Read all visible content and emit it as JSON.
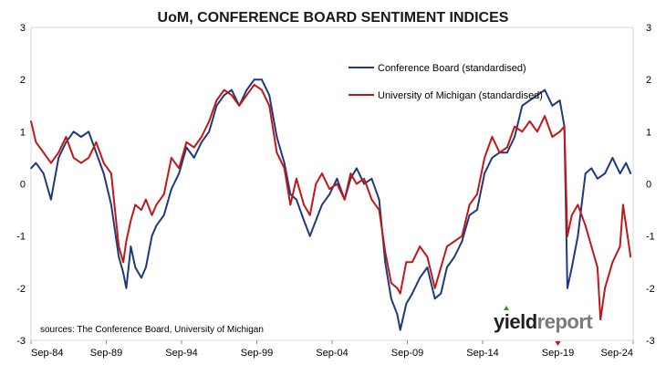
{
  "chart_data": {
    "type": "line",
    "title": "UoM, CONFERENCE BOARD SENTIMENT INDICES",
    "xlabel": "",
    "ylabel": "",
    "x_ticks": [
      "Sep-84",
      "Sep-89",
      "Sep-94",
      "Sep-99",
      "Sep-04",
      "Sep-09",
      "Sep-14",
      "Sep-19",
      "Sep-24"
    ],
    "xlim": [
      1984.67,
      2024.67
    ],
    "ylim": [
      -3,
      3
    ],
    "y_ticks": [
      3,
      2,
      1,
      0,
      -1,
      -2,
      -3
    ],
    "grid": false,
    "legend_position": "top-right",
    "series": [
      {
        "name": "Conference Board (standardised)",
        "color": "#1f3a7a",
        "x": [
          1984.67,
          1985.0,
          1985.5,
          1986.0,
          1986.5,
          1987.0,
          1987.5,
          1988.0,
          1988.5,
          1989.0,
          1989.5,
          1990.0,
          1990.5,
          1990.8,
          1991.0,
          1991.3,
          1991.6,
          1992.0,
          1992.3,
          1992.7,
          1993.0,
          1993.5,
          1994.0,
          1994.5,
          1995.0,
          1995.5,
          1996.0,
          1996.5,
          1997.0,
          1997.5,
          1998.0,
          1998.5,
          1999.0,
          1999.5,
          2000.0,
          2000.5,
          2001.0,
          2001.5,
          2001.9,
          2002.3,
          2002.8,
          2003.2,
          2003.6,
          2004.0,
          2004.5,
          2005.0,
          2005.5,
          2005.9,
          2006.3,
          2006.8,
          2007.3,
          2007.8,
          2008.2,
          2008.6,
          2009.0,
          2009.2,
          2009.6,
          2010.0,
          2010.5,
          2011.0,
          2011.5,
          2011.9,
          2012.3,
          2012.8,
          2013.3,
          2013.8,
          2014.3,
          2014.8,
          2015.3,
          2015.8,
          2016.3,
          2016.8,
          2017.3,
          2017.8,
          2018.3,
          2018.8,
          2019.3,
          2019.8,
          2020.1,
          2020.3,
          2020.6,
          2021.0,
          2021.5,
          2021.9,
          2022.3,
          2022.8,
          2023.3,
          2023.8,
          2024.2,
          2024.5
        ],
        "values": [
          0.3,
          0.4,
          0.2,
          -0.3,
          0.5,
          0.8,
          1.0,
          0.9,
          1.0,
          0.6,
          0.2,
          -0.4,
          -1.4,
          -1.7,
          -2.0,
          -1.2,
          -1.6,
          -1.8,
          -1.6,
          -1.0,
          -0.8,
          -0.6,
          -0.1,
          0.2,
          0.7,
          0.5,
          0.8,
          1.0,
          1.5,
          1.7,
          1.8,
          1.5,
          1.8,
          2.0,
          2.0,
          1.7,
          0.9,
          0.4,
          -0.2,
          -0.3,
          -0.7,
          -1.0,
          -0.7,
          -0.4,
          -0.2,
          0.1,
          -0.3,
          0.1,
          0.3,
          0.0,
          0.1,
          -0.3,
          -1.5,
          -2.2,
          -2.5,
          -2.8,
          -2.3,
          -2.1,
          -1.8,
          -1.6,
          -2.2,
          -2.1,
          -1.6,
          -1.4,
          -1.1,
          -0.6,
          -0.5,
          0.2,
          0.5,
          0.6,
          0.6,
          0.9,
          1.5,
          1.6,
          1.7,
          1.8,
          1.5,
          1.6,
          1.1,
          -2.0,
          -1.6,
          -1.0,
          0.2,
          0.3,
          0.1,
          0.2,
          0.5,
          0.2,
          0.4,
          0.2
        ]
      },
      {
        "name": "University of Michigan (standardised)",
        "color": "#c01818",
        "x": [
          1984.67,
          1985.0,
          1985.5,
          1986.0,
          1986.5,
          1987.0,
          1987.5,
          1988.0,
          1988.5,
          1989.0,
          1989.5,
          1990.0,
          1990.5,
          1990.8,
          1991.0,
          1991.3,
          1991.6,
          1992.0,
          1992.3,
          1992.7,
          1993.0,
          1993.5,
          1994.0,
          1994.5,
          1995.0,
          1995.5,
          1996.0,
          1996.5,
          1997.0,
          1997.5,
          1998.0,
          1998.5,
          1999.0,
          1999.5,
          2000.0,
          2000.5,
          2001.0,
          2001.5,
          2001.9,
          2002.3,
          2002.8,
          2003.2,
          2003.6,
          2004.0,
          2004.5,
          2005.0,
          2005.5,
          2005.9,
          2006.3,
          2006.8,
          2007.3,
          2007.8,
          2008.2,
          2008.6,
          2009.0,
          2009.2,
          2009.6,
          2010.0,
          2010.5,
          2011.0,
          2011.5,
          2011.9,
          2012.3,
          2012.8,
          2013.3,
          2013.8,
          2014.3,
          2014.8,
          2015.3,
          2015.8,
          2016.3,
          2016.8,
          2017.3,
          2017.8,
          2018.3,
          2018.8,
          2019.3,
          2019.8,
          2020.1,
          2020.3,
          2020.6,
          2021.0,
          2021.5,
          2021.9,
          2022.3,
          2022.5,
          2022.8,
          2023.3,
          2023.8,
          2024.0,
          2024.3,
          2024.5
        ],
        "values": [
          1.2,
          0.8,
          0.6,
          0.4,
          0.6,
          0.9,
          0.5,
          0.4,
          0.5,
          0.8,
          0.4,
          0.2,
          -1.2,
          -1.5,
          -1.1,
          -0.7,
          -0.4,
          -0.5,
          -0.3,
          -0.6,
          -0.4,
          -0.2,
          0.5,
          0.3,
          0.8,
          0.7,
          0.9,
          1.2,
          1.6,
          1.8,
          1.7,
          1.5,
          1.7,
          1.9,
          1.8,
          1.5,
          0.6,
          0.3,
          -0.4,
          0.1,
          -0.4,
          -0.6,
          0.0,
          0.2,
          -0.1,
          0.0,
          -0.3,
          0.2,
          0.0,
          0.1,
          -0.3,
          -0.5,
          -1.3,
          -1.9,
          -2.0,
          -2.1,
          -1.5,
          -1.5,
          -1.2,
          -1.4,
          -2.0,
          -1.6,
          -1.2,
          -1.1,
          -1.0,
          -0.4,
          -0.2,
          0.5,
          0.9,
          0.6,
          0.7,
          1.1,
          1.0,
          1.2,
          1.0,
          1.3,
          0.9,
          1.0,
          1.1,
          -1.0,
          -0.6,
          -0.4,
          -0.8,
          -1.2,
          -1.6,
          -2.6,
          -2.0,
          -1.5,
          -1.2,
          -0.4,
          -1.0,
          -1.4
        ]
      }
    ],
    "source": "sources: The Conference Board, University of Michigan",
    "logo": {
      "part1": "yield",
      "part2": "report"
    }
  }
}
